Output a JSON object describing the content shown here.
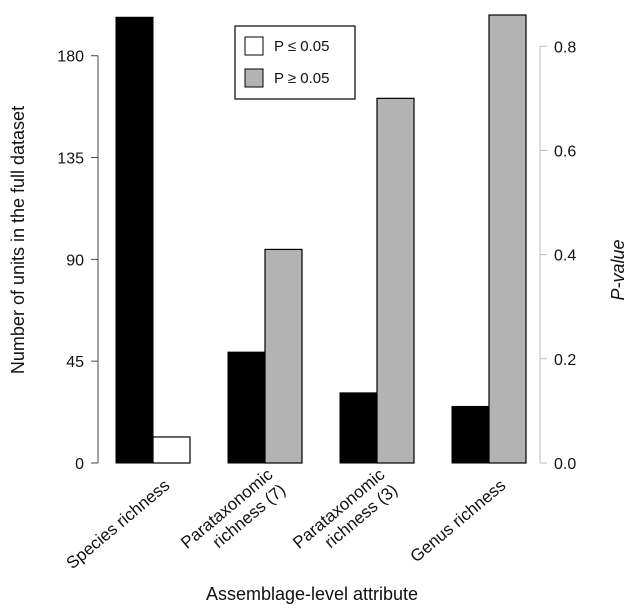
{
  "chart_data": {
    "type": "bar",
    "categories": [
      "Species richness",
      "Parataxonomic richness (7)",
      "Parataxonomic richness (3)",
      "Genus richness"
    ],
    "category_lines": [
      [
        "Species richness"
      ],
      [
        "Parataxonomic",
        "richness (7)"
      ],
      [
        "Parataxonomic",
        "richness (3)"
      ],
      [
        "Genus richness"
      ]
    ],
    "series": [
      {
        "name": "",
        "axis": "left",
        "values": [
          197,
          49,
          31,
          25
        ],
        "color": "#000000"
      },
      {
        "name": "",
        "axis": "right",
        "values": [
          0.05,
          0.41,
          0.7,
          0.86
        ],
        "colors": [
          "#ffffff",
          "#b3b3b3",
          "#b3b3b3",
          "#b3b3b3"
        ]
      }
    ],
    "legend": {
      "placement": "top-center",
      "entries": [
        {
          "label": "P ≤ 0.05",
          "color": "#ffffff"
        },
        {
          "label": "P ≥ 0.05",
          "color": "#b3b3b3"
        }
      ]
    },
    "xlabel": "Assemblage-level attribute",
    "ylabel_left": "Number of units in the full dataset",
    "ylabel_right": "P-value",
    "ylim_left": [
      0,
      198
    ],
    "ylim_right": [
      0,
      0.86
    ],
    "yticks_left": [
      "0",
      "45",
      "90",
      "135",
      "180"
    ],
    "yticks_right": [
      "0.0",
      "0.2",
      "0.4",
      "0.6",
      "0.8"
    ],
    "grid": false
  }
}
